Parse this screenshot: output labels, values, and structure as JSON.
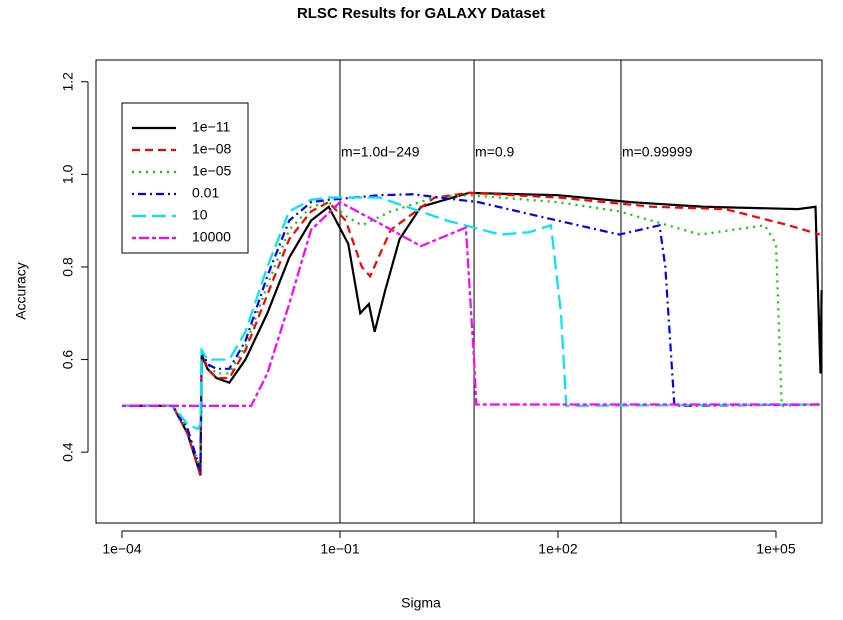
{
  "chart_data": {
    "type": "line",
    "title": "RLSC Results for GALAXY Dataset",
    "x_label": "Sigma",
    "y_label": "Accuracy",
    "xscale": "log",
    "xlim": [
      4.39e-05,
      430000
    ],
    "ylim": [
      0.247,
      1.247
    ],
    "xticks": [
      {
        "value": 0.0001,
        "label": "1e−04"
      },
      {
        "value": 0.1,
        "label": "1e−01"
      },
      {
        "value": 100,
        "label": "1e+02"
      },
      {
        "value": 100000,
        "label": "1e+05"
      }
    ],
    "yticks": [
      0.4,
      0.6,
      0.8,
      1.0,
      1.2
    ],
    "legend": "top-left",
    "vlines": [
      {
        "x": 0.1,
        "label": "m=1.0d−249"
      },
      {
        "x": 7,
        "label": "m=0.9"
      },
      {
        "x": 736,
        "label": "m=0.99999"
      }
    ],
    "series": [
      {
        "name": "1e−11",
        "color": "#000000",
        "dash": "solid",
        "x": [
          0.0001,
          0.0005,
          0.0008,
          0.0011,
          0.0012,
          0.00125,
          0.0015,
          0.002,
          0.003,
          0.005,
          0.01,
          0.02,
          0.04,
          0.07,
          0.13,
          0.19,
          0.25,
          0.3,
          0.42,
          0.66,
          1.3,
          6,
          100,
          1000,
          10000,
          200000,
          350000,
          410000,
          425000
        ],
        "values": [
          0.5,
          0.5,
          0.44,
          0.37,
          0.35,
          0.61,
          0.58,
          0.56,
          0.55,
          0.6,
          0.7,
          0.82,
          0.9,
          0.93,
          0.85,
          0.7,
          0.72,
          0.66,
          0.75,
          0.86,
          0.93,
          0.96,
          0.955,
          0.94,
          0.93,
          0.925,
          0.93,
          0.57,
          0.75
        ]
      },
      {
        "name": "1e−08",
        "color": "#ff0000",
        "dash": "dashed",
        "x": [
          0.0001,
          0.0005,
          0.0008,
          0.0011,
          0.0012,
          0.00125,
          0.0015,
          0.002,
          0.003,
          0.005,
          0.01,
          0.02,
          0.04,
          0.07,
          0.12,
          0.2,
          0.26,
          0.5,
          2,
          6,
          100,
          2000,
          20000,
          150000,
          400000
        ],
        "values": [
          0.5,
          0.5,
          0.44,
          0.37,
          0.35,
          0.62,
          0.58,
          0.56,
          0.56,
          0.62,
          0.74,
          0.86,
          0.92,
          0.94,
          0.9,
          0.8,
          0.78,
          0.88,
          0.95,
          0.96,
          0.95,
          0.93,
          0.925,
          0.89,
          0.87
        ]
      },
      {
        "name": "1e−05",
        "color": "#00cd00",
        "dash": "dotted",
        "x": [
          0.0001,
          0.0005,
          0.0008,
          0.0011,
          0.0012,
          0.00125,
          0.0015,
          0.002,
          0.003,
          0.005,
          0.01,
          0.02,
          0.04,
          0.07,
          0.12,
          0.2,
          0.5,
          2,
          6,
          100,
          700,
          9000,
          70000,
          100000,
          120000,
          400000
        ],
        "values": [
          0.5,
          0.5,
          0.45,
          0.38,
          0.36,
          0.62,
          0.59,
          0.57,
          0.57,
          0.63,
          0.76,
          0.88,
          0.93,
          0.94,
          0.91,
          0.89,
          0.92,
          0.95,
          0.955,
          0.94,
          0.92,
          0.87,
          0.89,
          0.85,
          0.5,
          0.503
        ]
      },
      {
        "name": "0.01",
        "color": "#0000ff",
        "dash": "dotdash",
        "x": [
          0.0001,
          0.0005,
          0.0008,
          0.0011,
          0.0012,
          0.00125,
          0.0015,
          0.002,
          0.003,
          0.005,
          0.01,
          0.02,
          0.04,
          0.07,
          0.35,
          1,
          8,
          100,
          700,
          2500,
          3000,
          4000,
          400000
        ],
        "values": [
          0.5,
          0.5,
          0.45,
          0.38,
          0.36,
          0.62,
          0.59,
          0.58,
          0.58,
          0.64,
          0.78,
          0.9,
          0.94,
          0.945,
          0.955,
          0.957,
          0.94,
          0.9,
          0.87,
          0.89,
          0.8,
          0.5,
          0.503
        ]
      },
      {
        "name": "10",
        "color": "#00e5ee",
        "dash": "longdash",
        "x": [
          0.0001,
          0.0005,
          0.0008,
          0.0011,
          0.0012,
          0.00125,
          0.0015,
          0.002,
          0.003,
          0.005,
          0.01,
          0.02,
          0.04,
          0.07,
          0.35,
          3,
          16,
          40,
          80,
          110,
          130,
          400000
        ],
        "values": [
          0.5,
          0.5,
          0.46,
          0.45,
          0.46,
          0.62,
          0.6,
          0.6,
          0.6,
          0.66,
          0.8,
          0.92,
          0.945,
          0.95,
          0.95,
          0.9,
          0.87,
          0.875,
          0.89,
          0.7,
          0.5,
          0.503
        ]
      },
      {
        "name": "10000",
        "color": "#ff00ff",
        "dash": "twodash",
        "x": [
          0.0001,
          0.006,
          0.01,
          0.02,
          0.04,
          0.1,
          0.3,
          1.3,
          5.4,
          7,
          7.5,
          400000
        ],
        "values": [
          0.5,
          0.5,
          0.57,
          0.72,
          0.88,
          0.94,
          0.9,
          0.845,
          0.885,
          0.6,
          0.503,
          0.503
        ]
      }
    ]
  }
}
